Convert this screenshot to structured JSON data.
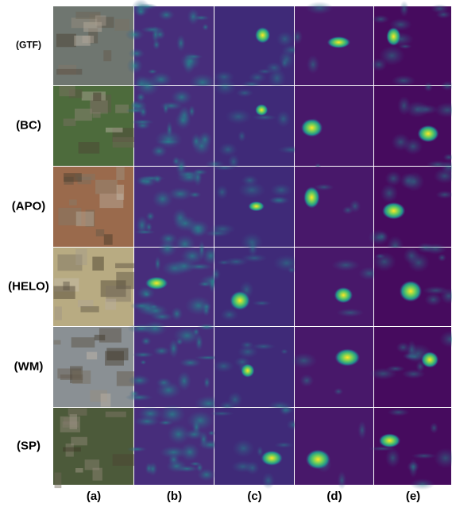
{
  "rows": [
    "(GTF)",
    "(BC)",
    "(APO)",
    "(HELO)",
    "(WM)",
    "(SP)"
  ],
  "columns": [
    "(a)",
    "(b)",
    "(c)",
    "(d)",
    "(e)"
  ]
}
